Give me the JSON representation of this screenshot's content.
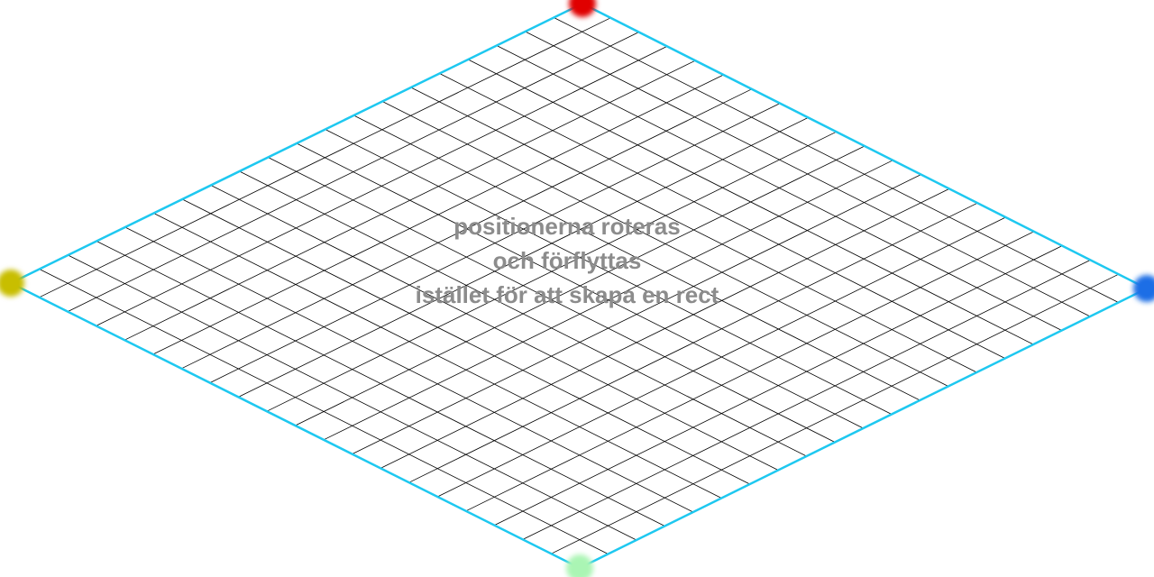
{
  "caption": {
    "line1": "positionerna roteras",
    "line2": "och förflyttas",
    "line3": "istället för att skapa en rect"
  },
  "grid": {
    "divisions": 20,
    "line_color": "#000000",
    "border_color": "#1ec8f0"
  },
  "corners": {
    "top": {
      "color": "#e00000"
    },
    "right": {
      "color": "#1e6ee6"
    },
    "bottom": {
      "color": "#aaf5b4"
    },
    "left": {
      "color": "#c8be00"
    }
  }
}
